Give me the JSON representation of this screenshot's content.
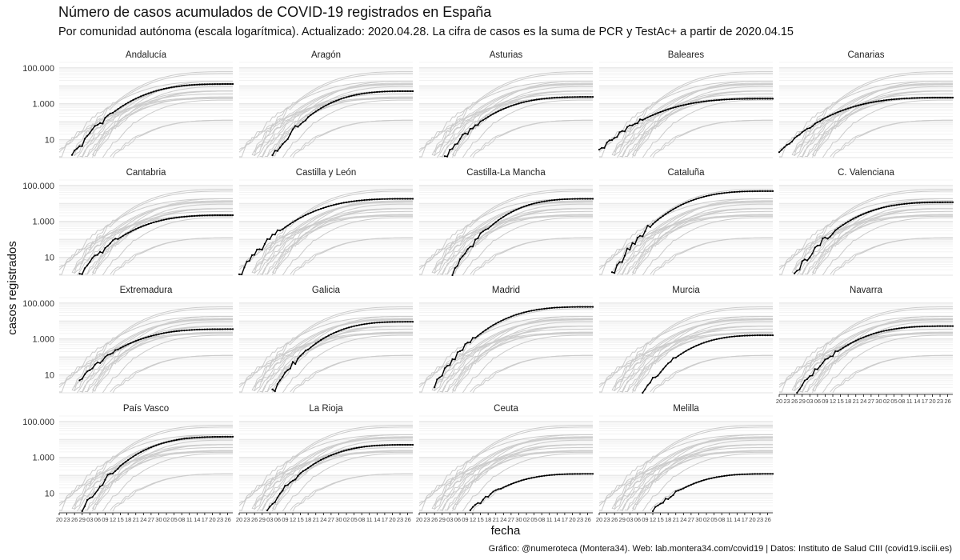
{
  "chart_data": {
    "type": "line",
    "scale": "log",
    "title": "Número de casos acumulados de COVID-19 registrados en España",
    "subtitle": "Por comunidad autónoma (escala logarítmica). Actualizado: 2020.04.28. La cifra de casos es la suma de PCR y TestAc+ a partir de 2020.04.15",
    "xlabel": "fecha",
    "ylabel": "casos registrados",
    "caption": "Gráfico: @numeroteca (Montera34). Web: lab.montera34.com/covid19 | Datos: Instituto de Salud CIII (covid19.isciii.es)",
    "y_ticks": [
      {
        "value": 10,
        "label": "10"
      },
      {
        "value": 1000,
        "label": "1.000"
      },
      {
        "value": 100000,
        "label": "100.000"
      }
    ],
    "ylim": [
      1,
      200000
    ],
    "x_start": "2020-02-20",
    "x_end": "2020-04-28",
    "x_ticks": [
      "20",
      "23",
      "26",
      "29",
      "03",
      "06",
      "09",
      "12",
      "15",
      "18",
      "21",
      "24",
      "27",
      "30",
      "02",
      "05",
      "08",
      "11",
      "14",
      "17",
      "20",
      "23",
      "26"
    ],
    "grid": "horizontal",
    "highlight_color": "#000000",
    "background_color": "#cccccc",
    "series": [
      {
        "name": "Andalucía",
        "start_date": "2020-02-25",
        "start_value": 1,
        "final_value": 12500
      },
      {
        "name": "Aragón",
        "start_date": "2020-03-04",
        "start_value": 1,
        "final_value": 5000
      },
      {
        "name": "Asturias",
        "start_date": "2020-03-01",
        "start_value": 1,
        "final_value": 2400
      },
      {
        "name": "Baleares",
        "start_date": "2020-02-20",
        "start_value": 2,
        "final_value": 1900
      },
      {
        "name": "Canarias",
        "start_date": "2020-02-20",
        "start_value": 2,
        "final_value": 2200
      },
      {
        "name": "Cantabria",
        "start_date": "2020-02-28",
        "start_value": 1,
        "final_value": 2200
      },
      {
        "name": "Castilla y León",
        "start_date": "2020-02-20",
        "start_value": 1,
        "final_value": 18000
      },
      {
        "name": "Castilla-La Mancha",
        "start_date": "2020-03-04",
        "start_value": 1,
        "final_value": 18000
      },
      {
        "name": "Cataluña",
        "start_date": "2020-02-25",
        "start_value": 1,
        "final_value": 48000
      },
      {
        "name": "C. Valenciana",
        "start_date": "2020-02-26",
        "start_value": 1,
        "final_value": 11500
      },
      {
        "name": "Extremadura",
        "start_date": "2020-02-28",
        "start_value": 5,
        "final_value": 3500
      },
      {
        "name": "Galicia",
        "start_date": "2020-03-04",
        "start_value": 1,
        "final_value": 9000
      },
      {
        "name": "Madrid",
        "start_date": "2020-02-26",
        "start_value": 2,
        "final_value": 61000
      },
      {
        "name": "Murcia",
        "start_date": "2020-03-08",
        "start_value": 1,
        "final_value": 1600
      },
      {
        "name": "Navarra",
        "start_date": "2020-02-27",
        "start_value": 1,
        "final_value": 5200
      },
      {
        "name": "País Vasco",
        "start_date": "2020-02-29",
        "start_value": 1,
        "final_value": 14000
      },
      {
        "name": "La Rioja",
        "start_date": "2020-03-02",
        "start_value": 1,
        "final_value": 5000
      },
      {
        "name": "Ceuta",
        "start_date": "2020-03-11",
        "start_value": 1,
        "final_value": 120
      },
      {
        "name": "Melilla",
        "start_date": "2020-03-12",
        "start_value": 1,
        "final_value": 120
      }
    ]
  }
}
